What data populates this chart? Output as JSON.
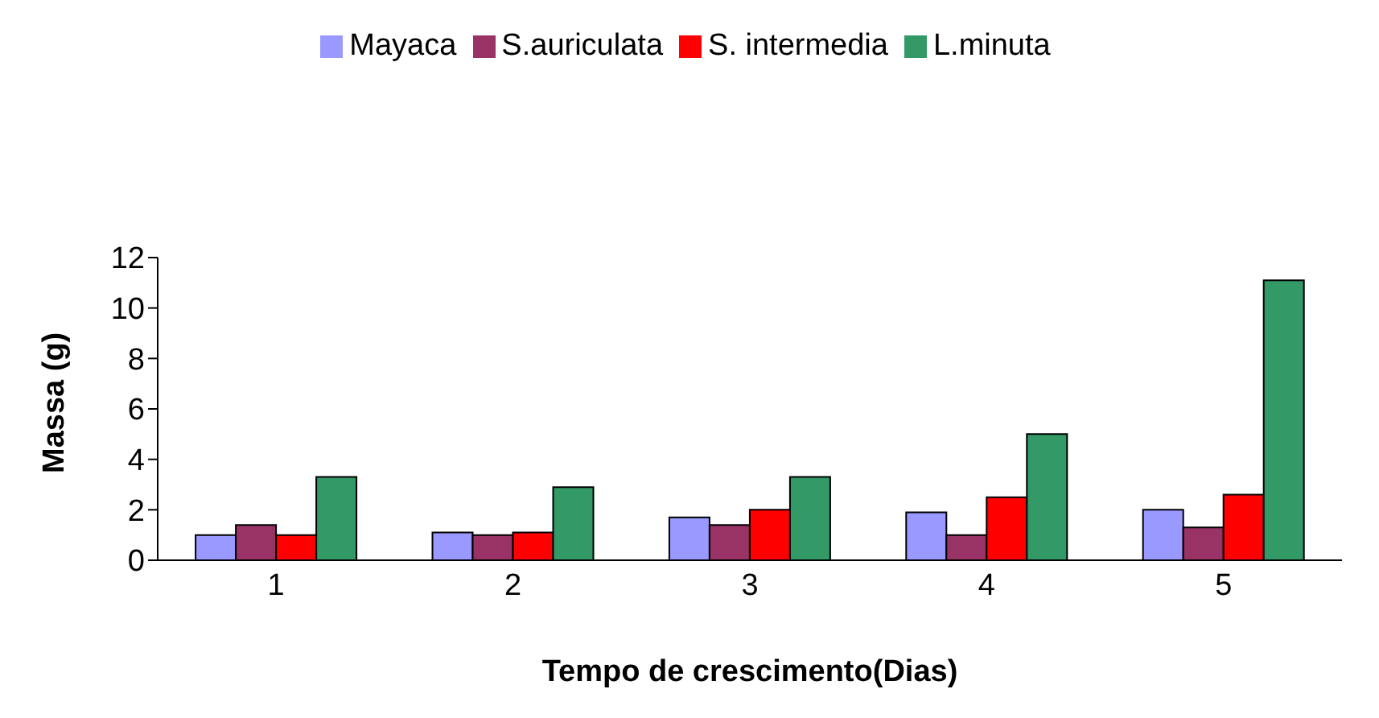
{
  "chart_data": {
    "type": "bar",
    "xlabel": "Tempo de crescimento(Dias)",
    "ylabel": "Massa (g)",
    "categories": [
      "1",
      "2",
      "3",
      "4",
      "5"
    ],
    "series": [
      {
        "name": "Mayaca",
        "color": "#9999ff",
        "values": [
          1.0,
          1.1,
          1.7,
          1.9,
          2.0
        ]
      },
      {
        "name": "S.auriculata",
        "color": "#993366",
        "values": [
          1.4,
          1.0,
          1.4,
          1.0,
          1.3
        ]
      },
      {
        "name": "S. intermedia",
        "color": "#ff0000",
        "values": [
          1.0,
          1.1,
          2.0,
          2.5,
          2.6
        ]
      },
      {
        "name": "L.minuta",
        "color": "#339966",
        "values": [
          3.3,
          2.9,
          3.3,
          5.0,
          11.1
        ]
      }
    ],
    "ylim": [
      0,
      12
    ],
    "yticks": [
      0,
      2,
      4,
      6,
      8,
      10,
      12
    ],
    "grid": false,
    "legend": "top"
  }
}
